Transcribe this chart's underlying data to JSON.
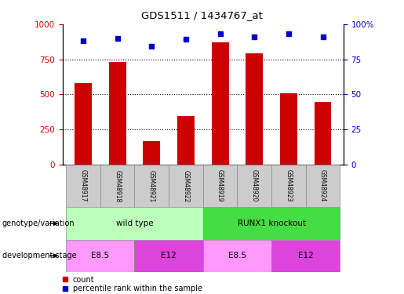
{
  "title": "GDS1511 / 1434767_at",
  "samples": [
    "GSM48917",
    "GSM48918",
    "GSM48921",
    "GSM48922",
    "GSM48919",
    "GSM48920",
    "GSM48923",
    "GSM48924"
  ],
  "counts": [
    580,
    730,
    165,
    345,
    870,
    790,
    505,
    445
  ],
  "percentiles": [
    88,
    90,
    84,
    89,
    93,
    91,
    93,
    91
  ],
  "bar_color": "#cc0000",
  "dot_color": "#0000cc",
  "left_ylim": [
    0,
    1000
  ],
  "right_ylim": [
    0,
    100
  ],
  "left_yticks": [
    0,
    250,
    500,
    750,
    1000
  ],
  "right_yticks": [
    0,
    25,
    50,
    75,
    100
  ],
  "genotype_groups": [
    {
      "label": "wild type",
      "start": 0,
      "end": 4,
      "color": "#bbffbb"
    },
    {
      "label": "RUNX1 knockout",
      "start": 4,
      "end": 8,
      "color": "#44dd44"
    }
  ],
  "stage_groups": [
    {
      "label": "E8.5",
      "start": 0,
      "end": 2,
      "color": "#ff99ff"
    },
    {
      "label": "E12",
      "start": 2,
      "end": 4,
      "color": "#dd44dd"
    },
    {
      "label": "E8.5",
      "start": 4,
      "end": 6,
      "color": "#ff99ff"
    },
    {
      "label": "E12",
      "start": 6,
      "end": 8,
      "color": "#dd44dd"
    }
  ],
  "legend_count_color": "#cc0000",
  "legend_dot_color": "#0000cc",
  "bg_color": "#ffffff",
  "row_label_genotype": "genotype/variation",
  "row_label_stage": "development stage",
  "bar_width": 0.5,
  "name_box_color": "#cccccc",
  "right_tick_label_100": "100%"
}
